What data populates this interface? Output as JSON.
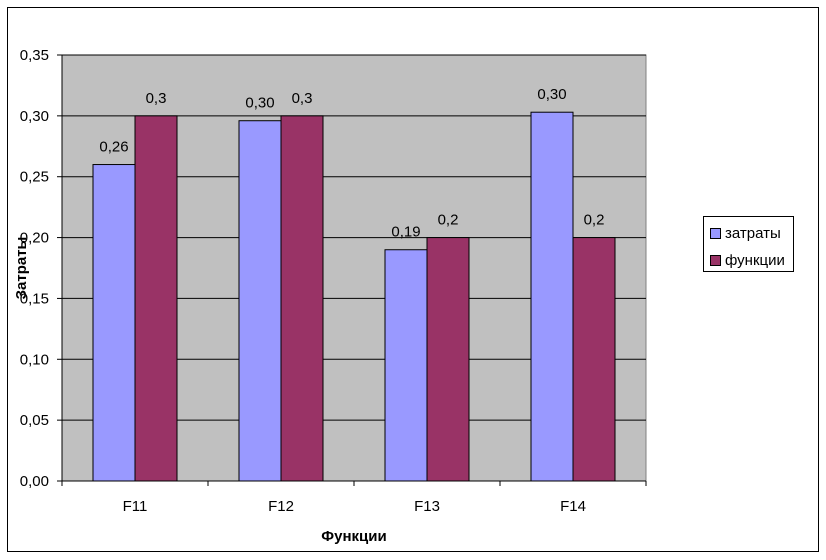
{
  "chart_data": {
    "type": "bar",
    "categories": [
      "F11",
      "F12",
      "F13",
      "F14"
    ],
    "series": [
      {
        "name": "затраты",
        "color": "#9999ff",
        "values": [
          0.26,
          0.296,
          0.19,
          0.303
        ],
        "labels": [
          "0,26",
          "0,30",
          "0,19",
          "0,30"
        ]
      },
      {
        "name": "функции",
        "color": "#993366",
        "values": [
          0.3,
          0.3,
          0.2,
          0.2
        ],
        "labels": [
          "0,3",
          "0,3",
          "0,2",
          "0,2"
        ]
      }
    ],
    "title": "",
    "xlabel": "Функции",
    "ylabel": "Затраты",
    "ylim": [
      0,
      0.35
    ],
    "yticks": [
      0,
      0.05,
      0.1,
      0.15,
      0.2,
      0.25,
      0.3,
      0.35
    ],
    "ytick_labels": [
      "0,00",
      "0,05",
      "0,10",
      "0,15",
      "0,20",
      "0,25",
      "0,30",
      "0,35"
    ],
    "grid": true,
    "legend_position": "right",
    "plot_background": "#c0c0c0"
  }
}
